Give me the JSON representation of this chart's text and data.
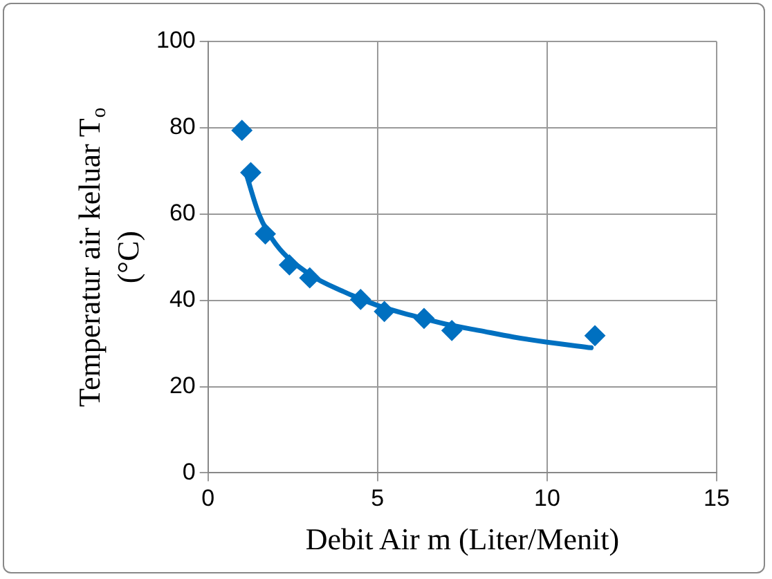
{
  "chart_data": {
    "type": "scatter",
    "xlabel": "Debit Air m (Liter/Menit)",
    "ylabel": "Temperatur air keluar T$_{o}$ (°C)",
    "xlim": [
      0,
      15
    ],
    "xticks": [
      0,
      5,
      10,
      15
    ],
    "ylim": [
      0,
      100
    ],
    "yticks": [
      0,
      20,
      40,
      60,
      80,
      100
    ],
    "grid": true,
    "legend": false,
    "marker": "diamond",
    "series": [
      {
        "color": "#0070c0",
        "x": [
          1.0,
          1.26,
          1.69,
          2.4,
          3.0,
          4.5,
          5.2,
          6.37,
          7.19,
          11.41
        ],
        "values": [
          79.4,
          69.6,
          55.4,
          48.2,
          45.2,
          40.2,
          37.4,
          35.8,
          33,
          31.8
        ]
      },
      {
        "type": "line",
        "marker": "none",
        "color": "#0070c0",
        "x": [
          1.1,
          1.5,
          2,
          3,
          4,
          5,
          6,
          7,
          8,
          9,
          10,
          11.3
        ],
        "values": [
          70,
          60,
          53,
          46,
          42,
          38.8,
          36.5,
          34.5,
          33,
          31.5,
          30.3,
          29
        ]
      }
    ]
  }
}
